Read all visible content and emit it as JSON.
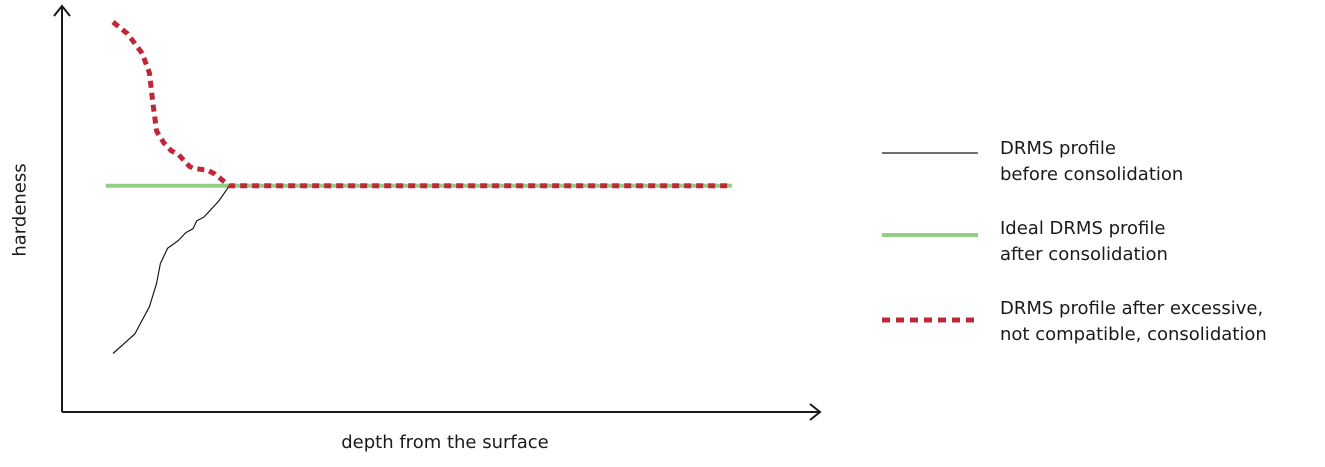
{
  "chart_data": {
    "type": "line",
    "xlabel": "depth from the surface",
    "ylabel": "hardeness",
    "xlim": [
      0,
      100
    ],
    "ylim": [
      0,
      100
    ],
    "legend_position": "right",
    "series": [
      {
        "name": [
          "DRMS profile",
          "before consolidation"
        ],
        "color": "#1a1a1a",
        "style": "solid-thin",
        "x": [
          7,
          10,
          12,
          13,
          13.5,
          14.5,
          16,
          17,
          18,
          18.5,
          19.5,
          20.5,
          21.5,
          23
        ],
        "y": [
          15,
          20,
          27,
          33,
          38,
          42,
          44,
          46,
          47,
          49,
          50,
          52,
          54,
          58
        ]
      },
      {
        "name": [
          "Ideal DRMS profile",
          "after consolidation"
        ],
        "color": "#90d080",
        "style": "solid-thick",
        "x": [
          6,
          92
        ],
        "y": [
          58,
          58
        ]
      },
      {
        "name": [
          "DRMS profile after excessive,",
          "not compatible, consolidation"
        ],
        "color": "#c0283a",
        "style": "dashed-thick",
        "x": [
          7,
          9,
          11,
          12,
          12.5,
          13,
          14,
          15,
          16,
          17,
          17.5,
          18,
          20,
          21,
          23,
          92
        ],
        "y": [
          100,
          97,
          92,
          87,
          79,
          72,
          69,
          67,
          66,
          64,
          63,
          62.5,
          62,
          61,
          58,
          58
        ]
      }
    ]
  }
}
